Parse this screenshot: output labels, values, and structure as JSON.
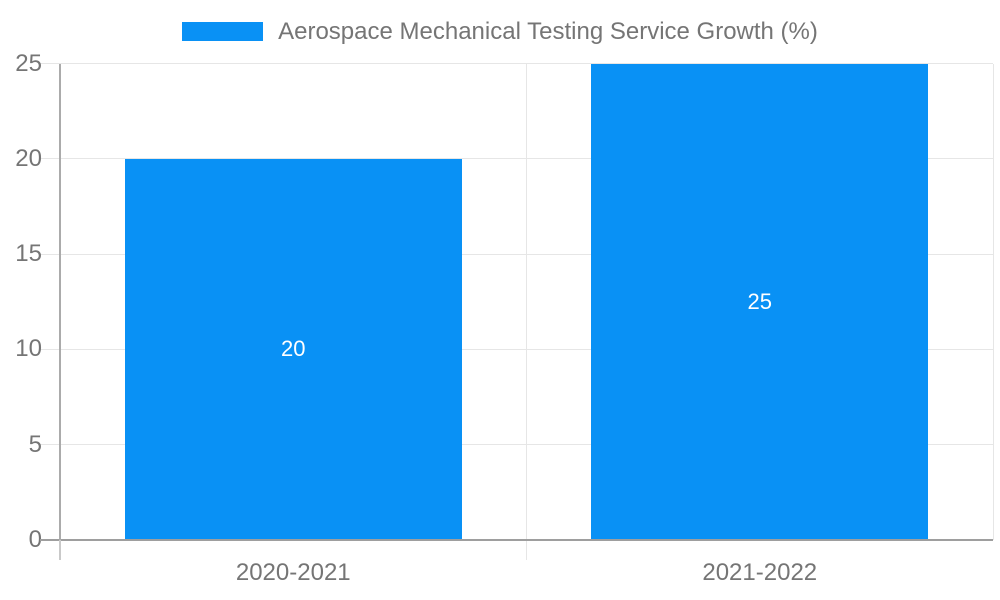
{
  "legend": {
    "label": "Aerospace Mechanical Testing Service Growth (%)"
  },
  "chart_data": {
    "type": "bar",
    "title": "Aerospace Mechanical Testing Service Growth (%)",
    "categories": [
      "2020-2021",
      "2021-2022"
    ],
    "values": [
      20,
      25
    ],
    "bar_labels": [
      "20",
      "25"
    ],
    "xlabel": "",
    "ylabel": "",
    "ylim": [
      0,
      25
    ],
    "yticks": [
      0,
      5,
      10,
      15,
      20,
      25
    ],
    "grid": true,
    "legend_position": "top-center",
    "colors": {
      "bar": "#0991f5",
      "axis_text": "#757575",
      "bar_label_text": "#ffffff",
      "gridline": "#e6e6e6",
      "baseline": "#9e9e9e",
      "y_axis_line": "#ababab",
      "y_axis_tail": "#c9c9c9",
      "background": "#ffffff"
    }
  }
}
